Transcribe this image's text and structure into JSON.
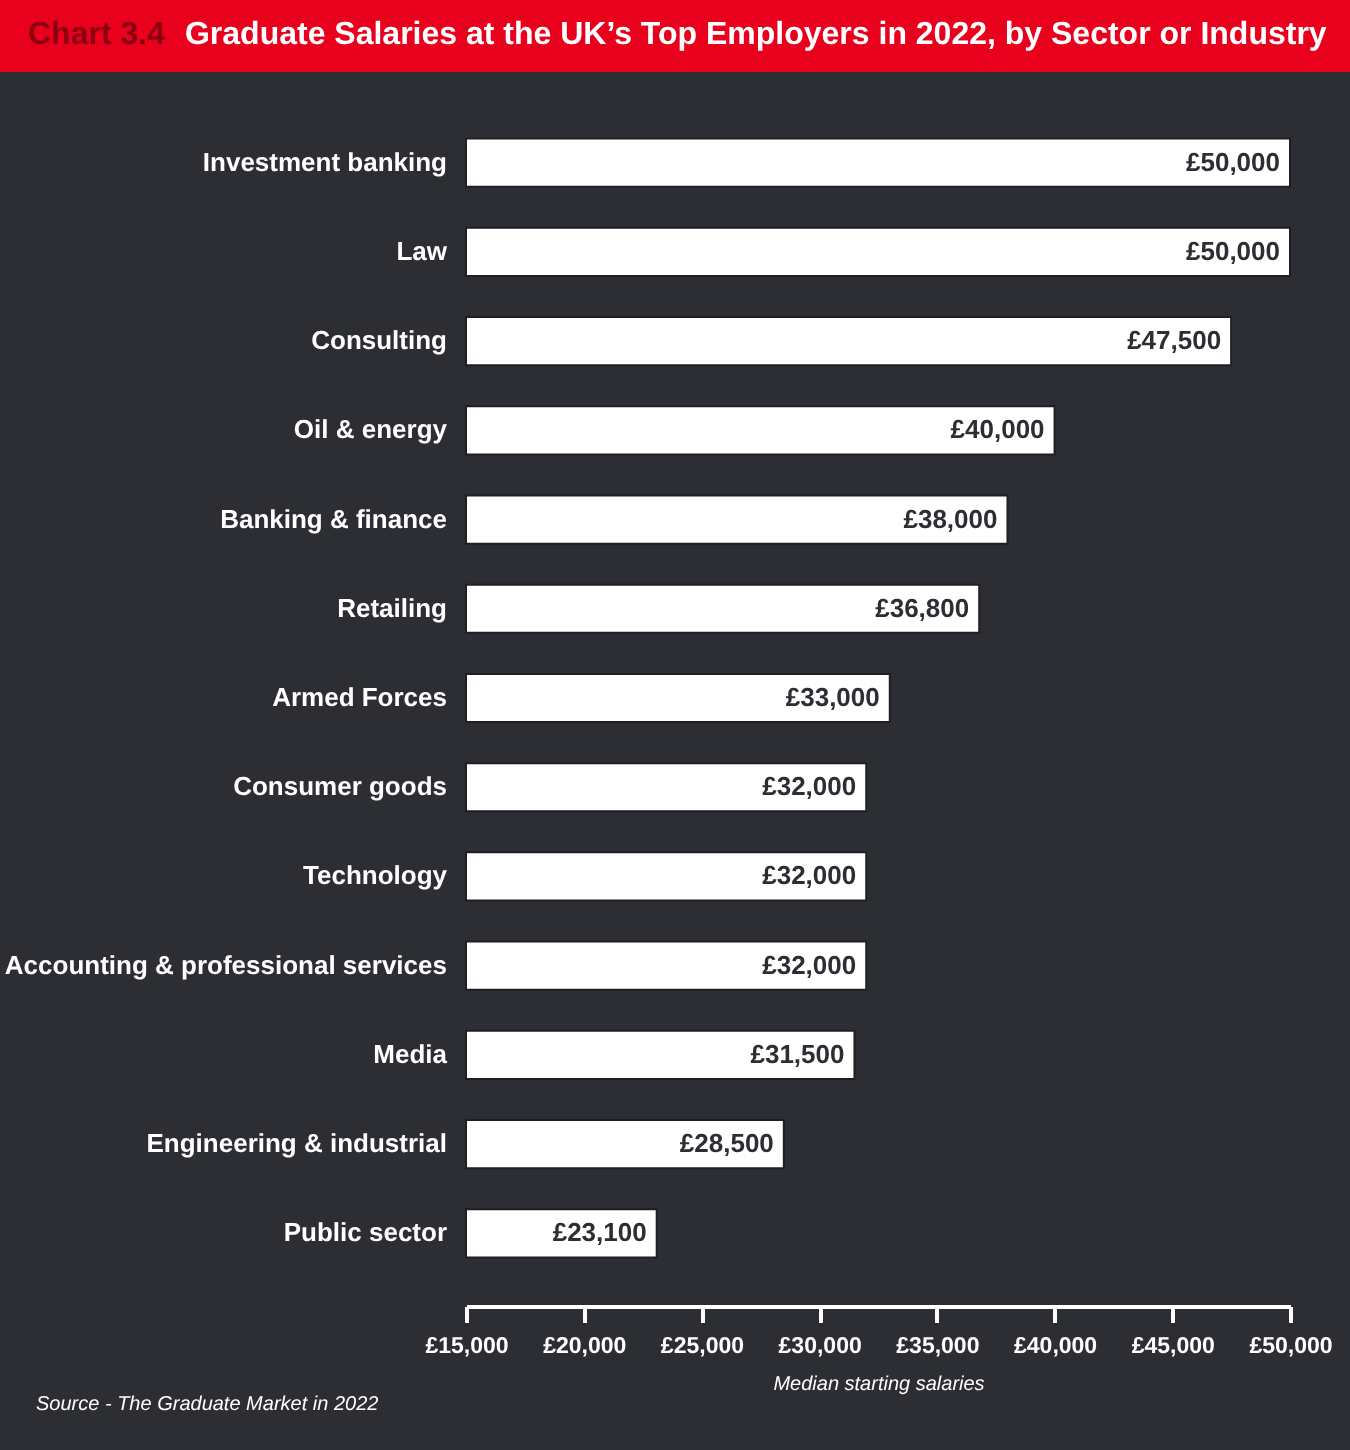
{
  "chart_data": {
    "type": "bar",
    "orientation": "horizontal",
    "title": "Graduate Salaries at the UK’s Top Employers in 2022, by Sector or Industry",
    "xlabel": "Median starting salaries",
    "categories": [
      "Investment banking",
      "Law",
      "Consulting",
      "Oil & energy",
      "Banking & finance",
      "Retailing",
      "Armed Forces",
      "Consumer goods",
      "Technology",
      "Accounting & professional services",
      "Media",
      "Engineering & industrial",
      "Public sector"
    ],
    "values": [
      50000,
      50000,
      47500,
      40000,
      38000,
      36800,
      33000,
      32000,
      32000,
      32000,
      31500,
      28500,
      23100
    ],
    "value_labels": [
      "£50,000",
      "£50,000",
      "£47,500",
      "£40,000",
      "£38,000",
      "£36,800",
      "£33,000",
      "£32,000",
      "£32,000",
      "£32,000",
      "£31,500",
      "£28,500",
      "£23,100"
    ],
    "color": "#ffffff",
    "xlim": [
      15000,
      50000
    ],
    "xticks": [
      {
        "value": 15000,
        "label": "£15,000"
      },
      {
        "value": 20000,
        "label": "£20,000"
      },
      {
        "value": 25000,
        "label": "£25,000"
      },
      {
        "value": 30000,
        "label": "£30,000"
      },
      {
        "value": 35000,
        "label": "£35,000"
      },
      {
        "value": 40000,
        "label": "£40,000"
      },
      {
        "value": 45000,
        "label": "£45,000"
      },
      {
        "value": 50000,
        "label": "£50,000"
      }
    ],
    "grid": false,
    "annotations": [
      "Chart 3.4",
      "Source - The Graduate Market in 2022"
    ]
  }
}
